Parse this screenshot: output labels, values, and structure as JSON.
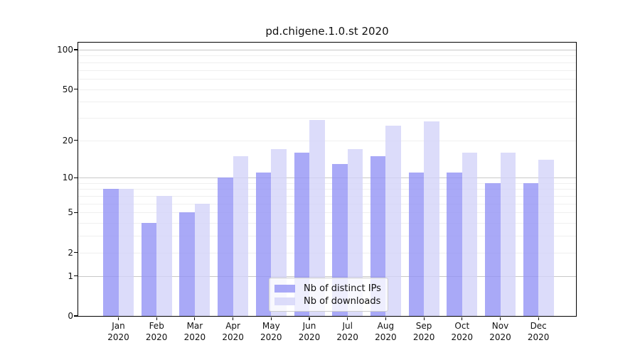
{
  "title": "pd.chigene.1.0.st 2020",
  "chart_data": {
    "type": "bar",
    "title": "pd.chigene.1.0.st 2020",
    "x_months": [
      "Jan",
      "Feb",
      "Mar",
      "Apr",
      "May",
      "Jun",
      "Jul",
      "Aug",
      "Sep",
      "Oct",
      "Nov",
      "Dec"
    ],
    "x_year_line": "2020",
    "series": [
      {
        "name": "Nb of distinct IPs",
        "values": [
          8,
          4,
          5,
          10,
          11,
          16,
          13,
          15,
          11,
          11,
          9,
          9
        ],
        "color_hex": "#a9a9f7",
        "color_rgba": "rgba(148,148,245,0.8)"
      },
      {
        "name": "Nb of downloads",
        "values": [
          8,
          7,
          6,
          15,
          17,
          29,
          17,
          26,
          28,
          16,
          16,
          14
        ],
        "color_hex": "#dcdcfa",
        "color_rgba": "rgba(211,211,249,0.8)"
      }
    ],
    "y_scale": "log1p",
    "y_ticks": [
      0,
      1,
      2,
      5,
      10,
      20,
      50,
      100
    ],
    "y_major_gridlines": [
      1,
      10,
      100
    ],
    "y_minor_gridlines": [
      2,
      3,
      4,
      5,
      6,
      7,
      8,
      9,
      20,
      30,
      40,
      50,
      60,
      70,
      80,
      90
    ],
    "ylim": [
      0,
      114
    ],
    "grid": true,
    "legend_position": "lower center",
    "colors": {
      "major_grid": "#c8c8c8",
      "minor_grid": "#efefef",
      "axis": "#000000",
      "text": "#111111",
      "background": "#ffffff"
    }
  }
}
